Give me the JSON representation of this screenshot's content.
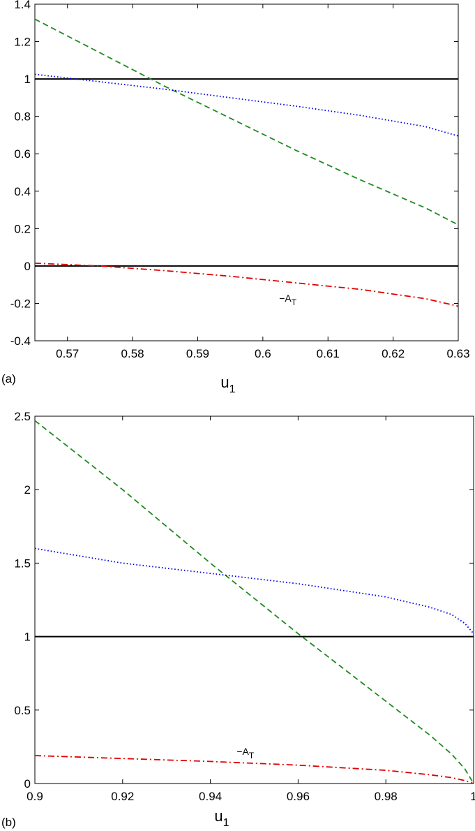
{
  "chart_data": [
    {
      "panel_label": "(a)",
      "type": "line",
      "xlabel": "u",
      "xlabel_sub": "1",
      "ylabel": "",
      "xlim": [
        0.565,
        0.63
      ],
      "ylim": [
        -0.4,
        1.4
      ],
      "xticks": [
        "0.57",
        "0.58",
        "0.59",
        "0.6",
        "0.61",
        "0.62",
        "0.63"
      ],
      "xtick_values": [
        0.57,
        0.58,
        0.59,
        0.6,
        0.61,
        0.62,
        0.63
      ],
      "yticks": [
        "-0.4",
        "-0.2",
        "0",
        "0.2",
        "0.4",
        "0.6",
        "0.8",
        "1",
        "1.2",
        "1.4"
      ],
      "ytick_values": [
        -0.4,
        -0.2,
        0,
        0.2,
        0.4,
        0.6,
        0.8,
        1,
        1.2,
        1.4
      ],
      "annotation": {
        "text": "−A",
        "sub": "T",
        "x": 0.6025,
        "y": -0.19
      },
      "series": [
        {
          "color": "#000000",
          "style": "solid",
          "x": [
            0.565,
            0.63
          ],
          "y": [
            1.0,
            1.0
          ]
        },
        {
          "color": "#000000",
          "style": "solid",
          "x": [
            0.565,
            0.63
          ],
          "y": [
            0.0,
            0.0
          ]
        },
        {
          "color": "#1f8a1f",
          "style": "dashed",
          "x": [
            0.565,
            0.575,
            0.585,
            0.595,
            0.605,
            0.615,
            0.625,
            0.63
          ],
          "y": [
            1.32,
            1.14,
            0.96,
            0.79,
            0.62,
            0.46,
            0.31,
            0.22
          ]
        },
        {
          "color": "#0000ee",
          "style": "dotted",
          "x": [
            0.565,
            0.575,
            0.585,
            0.595,
            0.605,
            0.615,
            0.625,
            0.63
          ],
          "y": [
            1.025,
            0.985,
            0.945,
            0.9,
            0.855,
            0.805,
            0.745,
            0.695
          ]
        },
        {
          "color": "#e00000",
          "style": "dashdot",
          "x": [
            0.565,
            0.575,
            0.585,
            0.595,
            0.605,
            0.615,
            0.625,
            0.63
          ],
          "y": [
            0.015,
            0.0,
            -0.025,
            -0.055,
            -0.09,
            -0.125,
            -0.175,
            -0.215
          ]
        }
      ]
    },
    {
      "panel_label": "(b)",
      "type": "line",
      "xlabel": "u",
      "xlabel_sub": "1",
      "ylabel": "",
      "xlim": [
        0.9,
        1.0
      ],
      "ylim": [
        0,
        2.5
      ],
      "xticks": [
        "0.9",
        "0.92",
        "0.94",
        "0.96",
        "0.98",
        "1"
      ],
      "xtick_values": [
        0.9,
        0.92,
        0.94,
        0.96,
        0.98,
        1.0
      ],
      "yticks": [
        "0",
        "0.5",
        "1",
        "1.5",
        "2",
        "2.5"
      ],
      "ytick_values": [
        0,
        0.5,
        1,
        1.5,
        2,
        2.5
      ],
      "annotation": {
        "text": "−A",
        "sub": "T",
        "x": 0.946,
        "y": 0.195
      },
      "series": [
        {
          "color": "#000000",
          "style": "solid",
          "x": [
            0.9,
            1.0
          ],
          "y": [
            1.0,
            1.0
          ]
        },
        {
          "color": "#1f8a1f",
          "style": "dashed",
          "x": [
            0.9,
            0.92,
            0.94,
            0.96,
            0.98,
            0.99,
            0.995,
            0.998,
            1.0
          ],
          "y": [
            2.47,
            2.0,
            1.5,
            1.02,
            0.56,
            0.33,
            0.2,
            0.1,
            0.0
          ]
        },
        {
          "color": "#0000ee",
          "style": "dotted",
          "x": [
            0.9,
            0.92,
            0.94,
            0.96,
            0.98,
            0.99,
            0.995,
            0.998,
            1.0
          ],
          "y": [
            1.6,
            1.5,
            1.43,
            1.36,
            1.27,
            1.2,
            1.15,
            1.09,
            1.02
          ]
        },
        {
          "color": "#e00000",
          "style": "dashdot",
          "x": [
            0.9,
            0.92,
            0.94,
            0.96,
            0.98,
            0.99,
            0.995,
            0.998,
            1.0
          ],
          "y": [
            0.19,
            0.17,
            0.15,
            0.125,
            0.09,
            0.06,
            0.04,
            0.02,
            0.0
          ]
        }
      ]
    }
  ]
}
